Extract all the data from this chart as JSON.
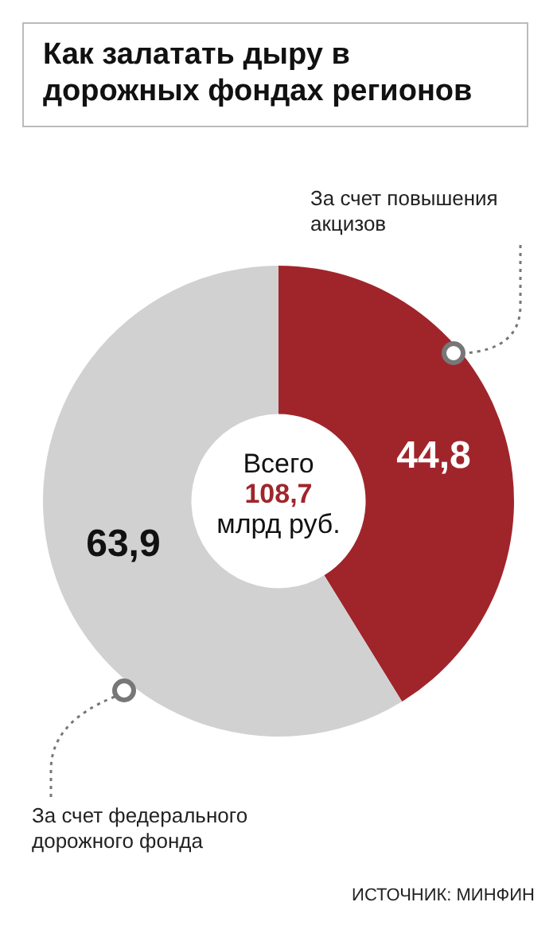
{
  "chart_data": {
    "type": "donut",
    "title": "Как залатать дыру в дорожных фондах регионов",
    "categories": [
      "За счет повышения акцизов",
      "За счет федерального дорожного фонда"
    ],
    "values": [
      44.8,
      63.9
    ],
    "colors": [
      "#a0252b",
      "#d1d1d1"
    ],
    "value_labels": [
      "44,8",
      "63,9"
    ],
    "legend": false,
    "annotations": [
      "Всего",
      "108,7",
      "млрд руб.",
      "ИСТОЧНИК: МИНФИН"
    ]
  }
}
